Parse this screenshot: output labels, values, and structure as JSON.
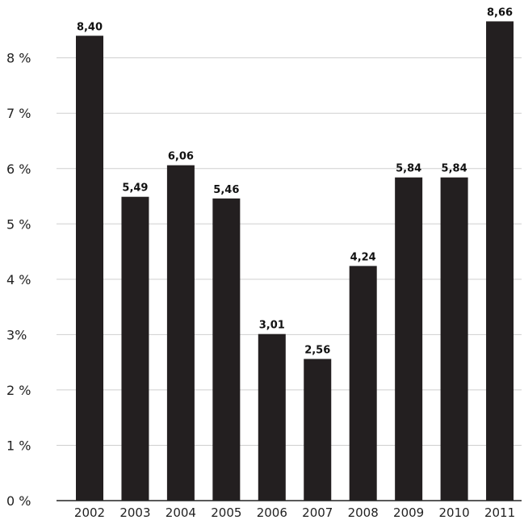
{
  "chart_data": {
    "type": "bar",
    "categories": [
      "2002",
      "2003",
      "2004",
      "2005",
      "2006",
      "2007",
      "2008",
      "2009",
      "2010",
      "2011"
    ],
    "values": [
      8.4,
      5.49,
      6.06,
      5.46,
      3.01,
      2.56,
      4.24,
      5.84,
      5.84,
      8.66
    ],
    "data_labels": [
      "8,40",
      "5,49",
      "6,06",
      "5,46",
      "3,01",
      "2,56",
      "4,24",
      "5,84",
      "5,84",
      "8,66"
    ],
    "y_ticks": [
      {
        "value": 0,
        "label": "0 %"
      },
      {
        "value": 1,
        "label": "1 %"
      },
      {
        "value": 2,
        "label": "2 %"
      },
      {
        "value": 3,
        "label": "3%"
      },
      {
        "value": 4,
        "label": "4 %"
      },
      {
        "value": 5,
        "label": "5 %"
      },
      {
        "value": 6,
        "label": "6 %"
      },
      {
        "value": 7,
        "label": "7 %"
      },
      {
        "value": 8,
        "label": "8 %"
      }
    ],
    "title": "",
    "xlabel": "",
    "ylabel": "",
    "ylim": [
      0,
      8.9
    ],
    "grid": true,
    "legend": "none",
    "colors": {
      "bar": "#231f20",
      "grid": "#cfcfcf",
      "axis": "#222222",
      "text": "#222222"
    }
  }
}
